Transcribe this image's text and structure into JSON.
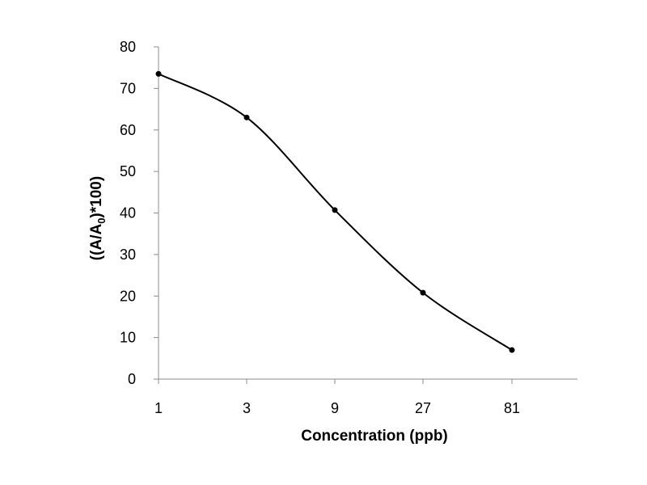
{
  "chart_data": {
    "type": "line",
    "categories": [
      "1",
      "3",
      "9",
      "27",
      "81"
    ],
    "values": [
      73.5,
      63,
      40.7,
      20.8,
      7
    ],
    "xlabel": "Concentration (ppb)",
    "ylabel": {
      "prefix": "((A/A",
      "subscript": "0",
      "suffix": ")*100)"
    },
    "ylim": [
      0,
      80
    ],
    "yticks": [
      "0",
      "10",
      "20",
      "30",
      "40",
      "50",
      "60",
      "70",
      "80"
    ],
    "grid": false,
    "legend": "none",
    "line_color": "#000000",
    "marker_color": "#000000",
    "smooth": true
  }
}
